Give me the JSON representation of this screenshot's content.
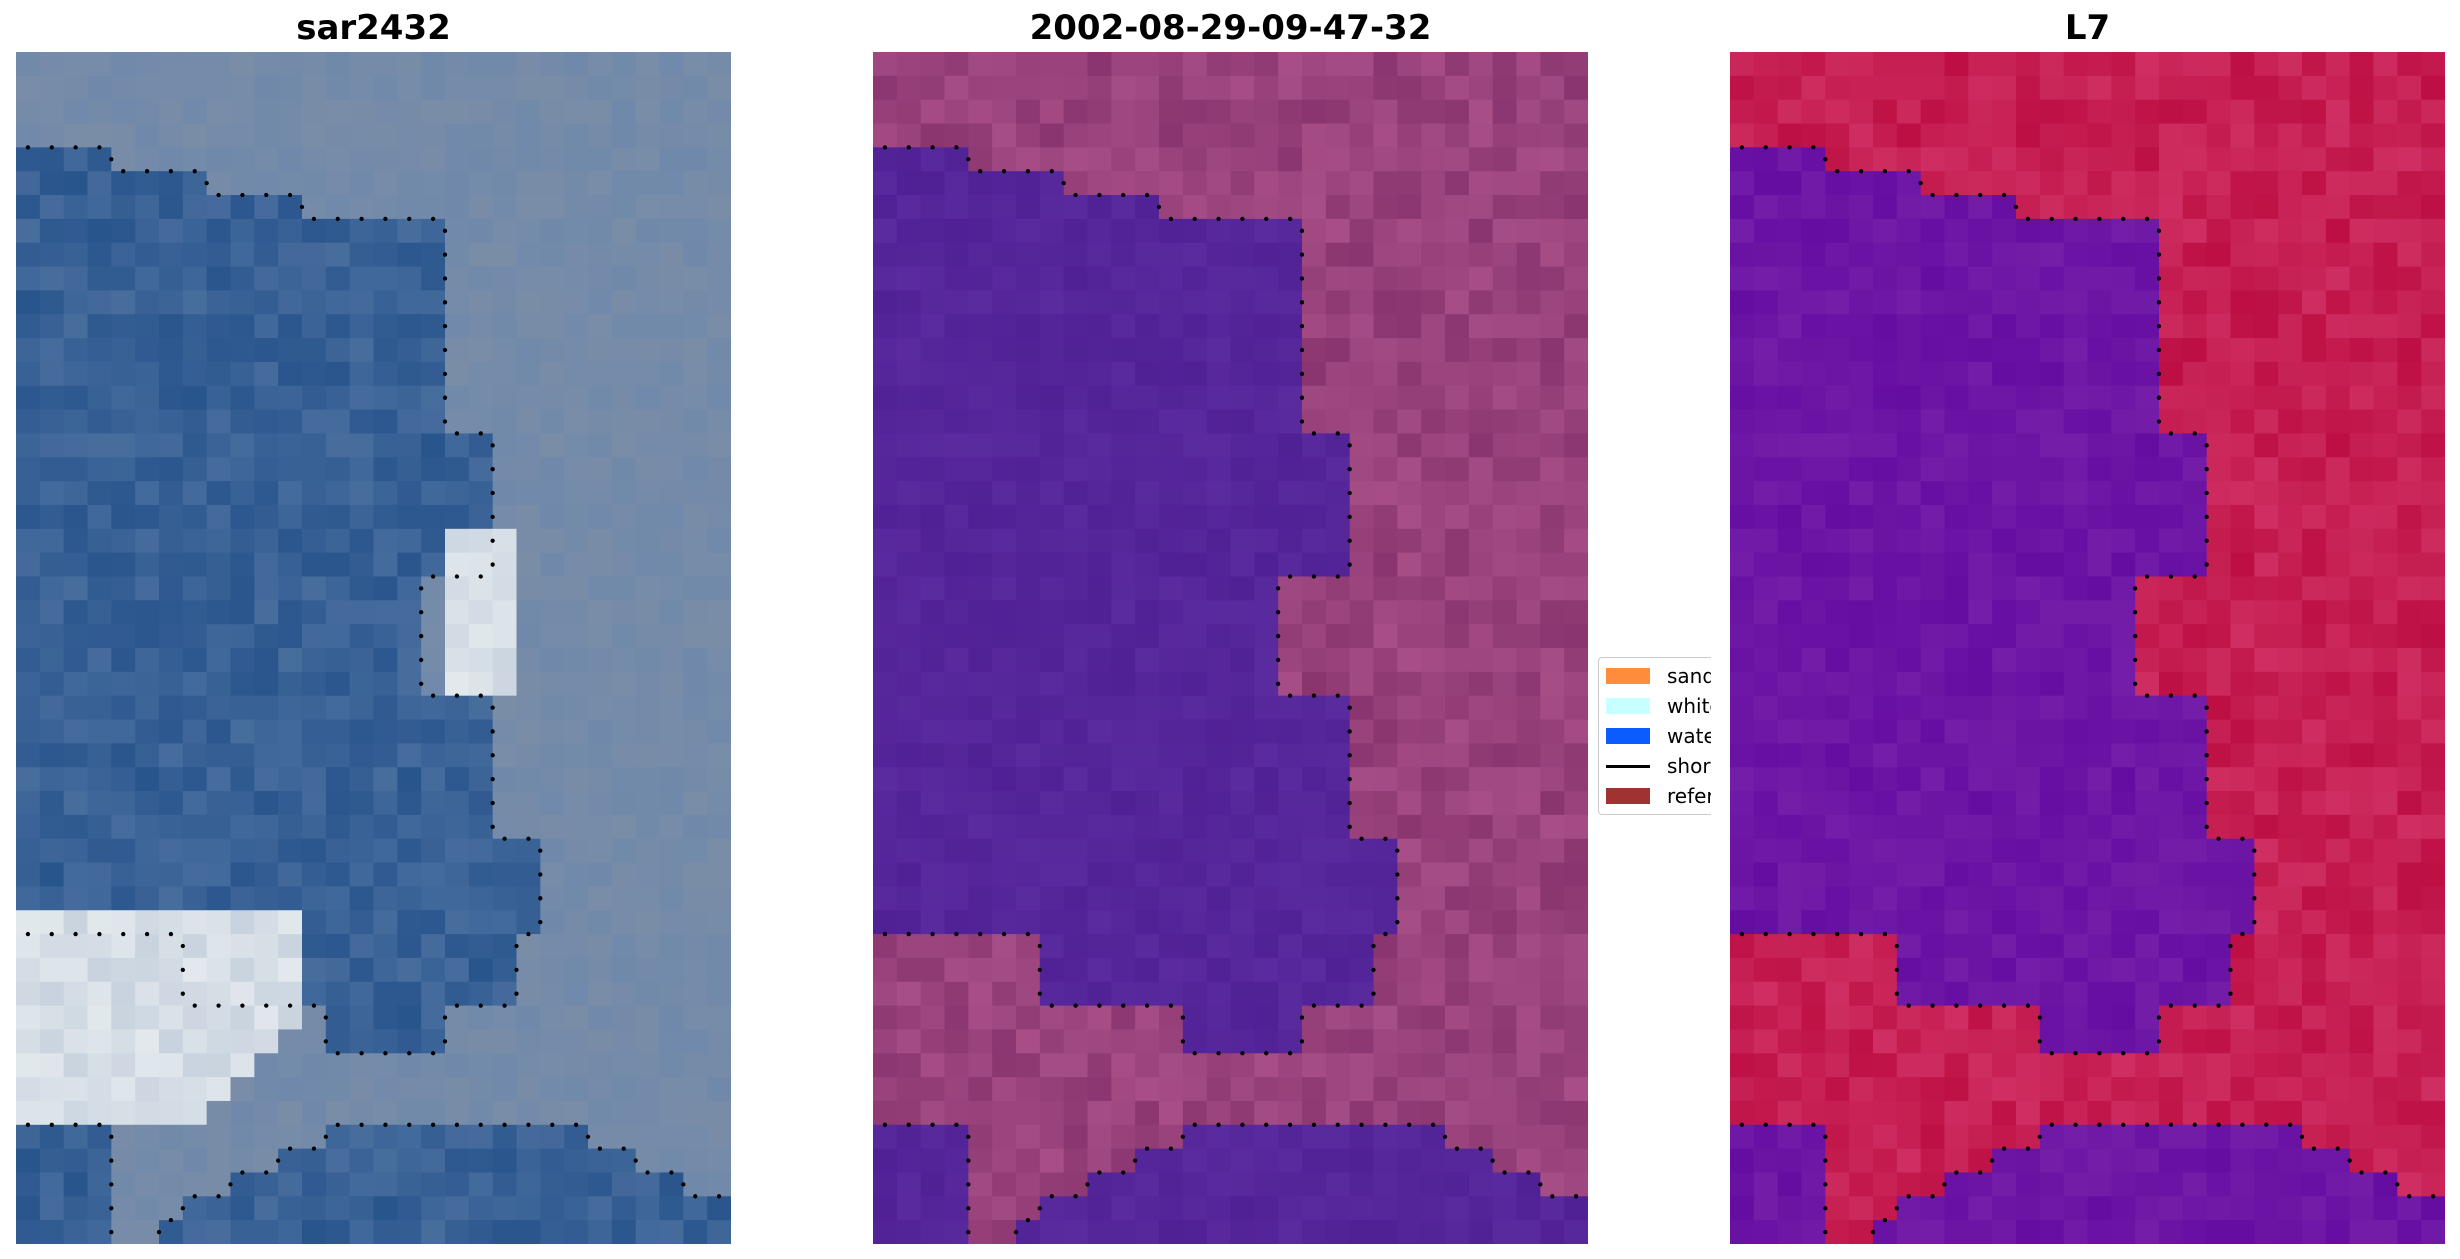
{
  "panels": [
    {
      "title": "sar2432",
      "palette": "rgb"
    },
    {
      "title": "2002-08-29-09-47-32",
      "palette": "classified"
    },
    {
      "title": "L7",
      "palette": "index"
    }
  ],
  "legend": {
    "items": [
      {
        "label": "sand",
        "color": "#ff8c3a",
        "kind": "patch"
      },
      {
        "label": "whitew",
        "color": "#c8ffff",
        "kind": "patch"
      },
      {
        "label": "water",
        "color": "#0a5cff",
        "kind": "patch"
      },
      {
        "label": "shoreli",
        "color": "#000000",
        "kind": "line"
      },
      {
        "label": "referen",
        "color": "#a03232",
        "kind": "patch"
      }
    ]
  },
  "colors": {
    "rgb_water": "#2e5a92",
    "rgb_land": "#7f92ac",
    "rgb_white": "#e8eef2",
    "classified_water": "#55259a",
    "classified_land": "#8f3a74",
    "index_water": "#6a12a6",
    "index_land": "#c21448",
    "shoreline": "#000000"
  }
}
